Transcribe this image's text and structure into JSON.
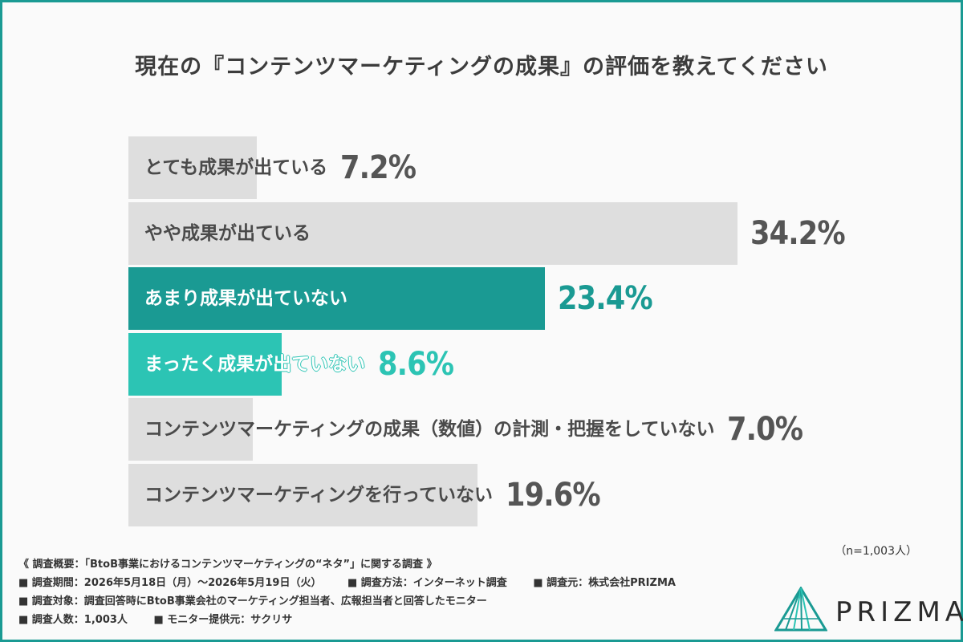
{
  "title": "現在の『コンテンツマーケティングの成果』の評価を教えてください",
  "colors": {
    "frame": "#1a9a93",
    "gray_bar": "#dedede",
    "gray_text": "#555555",
    "dark_teal": "#1a9a93",
    "light_teal": "#2cc4b4"
  },
  "chart_data": {
    "type": "bar",
    "orientation": "horizontal",
    "title": "現在の『コンテンツマーケティングの成果』の評価を教えてください",
    "categories": [
      "とても成果が出ている",
      "やや成果が出ている",
      "あまり成果が出ていない",
      "まったく成果が出ていない",
      "コンテンツマーケティングの成果（数値）の計測・把握をしていない",
      "コンテンツマーケティングを行っていない"
    ],
    "values": [
      7.2,
      34.2,
      23.4,
      8.6,
      7.0,
      19.6
    ],
    "value_labels": [
      "7.2%",
      "34.2%",
      "23.4%",
      "8.6%",
      "7.0%",
      "19.6%"
    ],
    "bar_colors": [
      "#dedede",
      "#dedede",
      "#1a9a93",
      "#2cc4b4",
      "#dedede",
      "#dedede"
    ],
    "label_colors": [
      "#4a4a4a",
      "#4a4a4a",
      "#ffffff",
      "#ffffff",
      "#4a4a4a",
      "#4a4a4a"
    ],
    "value_colors": [
      "#555555",
      "#555555",
      "#1a9a93",
      "#2cc4b4",
      "#555555",
      "#555555"
    ],
    "unit": "%"
  },
  "sample_note": "（n=1,003人）",
  "footer": {
    "line1": "《 調査概要：「BtoB事業におけるコンテンツマーケティングの“ネタ”」に関する調査 》",
    "period": "■ 調査期間：2026年5月18日（月）～2026年5月19日（火）",
    "method": "■ 調査方法：インターネット調査",
    "source": "■ 調査元：株式会社PRIZMA",
    "target": "■ 調査対象：調査回答時にBtoB事業会社のマーケティング担当者、広報担当者と回答したモニター",
    "count": "■ 調査人数：1,003人",
    "provider": "■ モニター提供元：サクリサ"
  },
  "logo_text": "PRIZMA"
}
